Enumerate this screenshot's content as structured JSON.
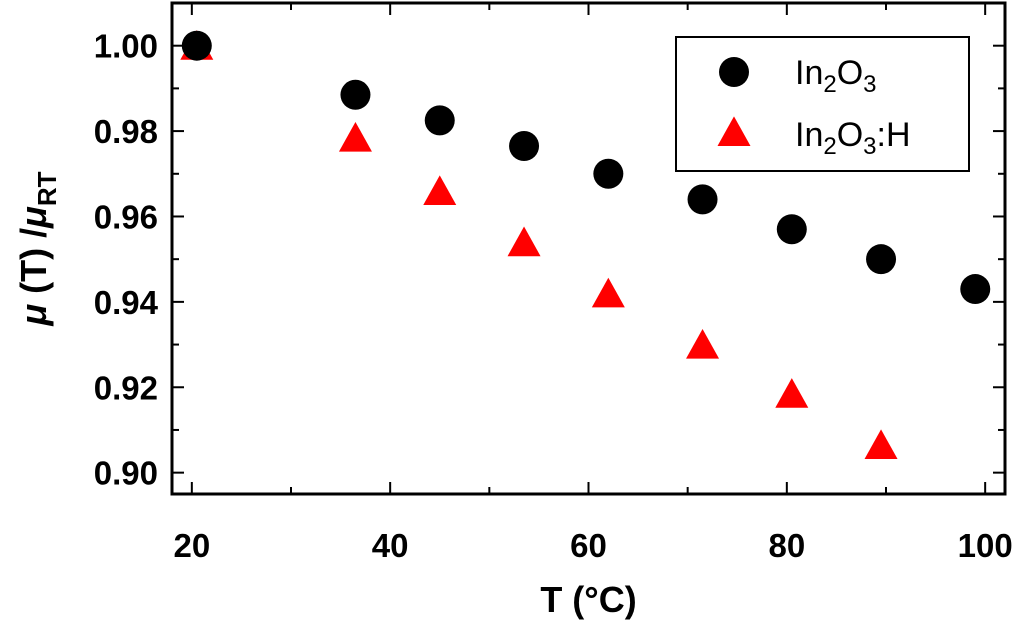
{
  "chart_data": {
    "type": "scatter",
    "xlabel": "T (°C)",
    "ylabel": "μ (T) /μRT",
    "ylabel_parts": {
      "mu1": "μ",
      "mid": " (T) /",
      "mu2": "μ",
      "sub": "RT"
    },
    "xlim": [
      18,
      102
    ],
    "ylim": [
      0.895,
      1.01
    ],
    "x_ticks": [
      20,
      40,
      60,
      80,
      100
    ],
    "x_tick_labels": [
      "20",
      "40",
      "60",
      "80",
      "100"
    ],
    "y_ticks": [
      0.9,
      0.92,
      0.94,
      0.96,
      0.98,
      1.0
    ],
    "y_tick_labels": [
      "0.90",
      "0.92",
      "0.94",
      "0.96",
      "0.98",
      "1.00"
    ],
    "grid": false,
    "legend_position": "top-right",
    "series": [
      {
        "name": "In2O3",
        "legend": {
          "base": "In",
          "sub1": "2",
          "mid": "O",
          "sub2": "3",
          "suffix": ""
        },
        "marker": "circle",
        "color": "#000000",
        "x": [
          20.5,
          36.5,
          45,
          53.5,
          62,
          71.5,
          80.5,
          89.5,
          99
        ],
        "y": [
          1.0,
          0.9885,
          0.9825,
          0.9765,
          0.97,
          0.964,
          0.957,
          0.95,
          0.943
        ]
      },
      {
        "name": "In2O3:H",
        "legend": {
          "base": "In",
          "sub1": "2",
          "mid": "O",
          "sub2": "3",
          "suffix": ":H"
        },
        "marker": "triangle",
        "color": "#ff0000",
        "x": [
          20.5,
          36.5,
          45,
          53.5,
          62,
          71.5,
          80.5,
          89.5
        ],
        "y": [
          0.9995,
          0.978,
          0.9655,
          0.9535,
          0.9415,
          0.9295,
          0.918,
          0.906
        ]
      }
    ]
  }
}
